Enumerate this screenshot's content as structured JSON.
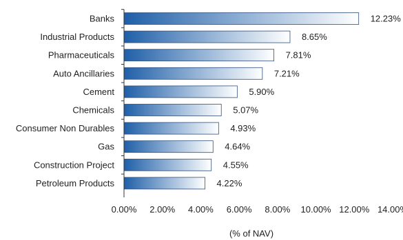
{
  "chart_data": {
    "type": "bar",
    "orientation": "horizontal",
    "categories": [
      "Banks",
      "Industrial Products",
      "Pharmaceuticals",
      "Auto Ancillaries",
      "Cement",
      "Chemicals",
      "Consumer Non Durables",
      "Gas",
      "Construction Project",
      "Petroleum Products"
    ],
    "values": [
      12.23,
      8.65,
      7.81,
      7.21,
      5.9,
      5.07,
      4.93,
      4.64,
      4.55,
      4.22
    ],
    "value_labels": [
      "12.23%",
      "8.65%",
      "7.81%",
      "7.21%",
      "5.90%",
      "5.07%",
      "4.93%",
      "4.64%",
      "4.55%",
      "4.22%"
    ],
    "xlim": [
      0,
      14
    ],
    "x_ticks": [
      0,
      2,
      4,
      6,
      8,
      10,
      12,
      14
    ],
    "x_tick_labels": [
      "0.00%",
      "2.00%",
      "4.00%",
      "6.00%",
      "8.00%",
      "10.00%",
      "12.00%",
      "14.00%"
    ],
    "xlabel": "(% of NAV)",
    "grid": false,
    "colors": {
      "bar_start": "#1f5fa8",
      "bar_end": "#ffffff",
      "bar_border": "#2f4f7a"
    }
  }
}
